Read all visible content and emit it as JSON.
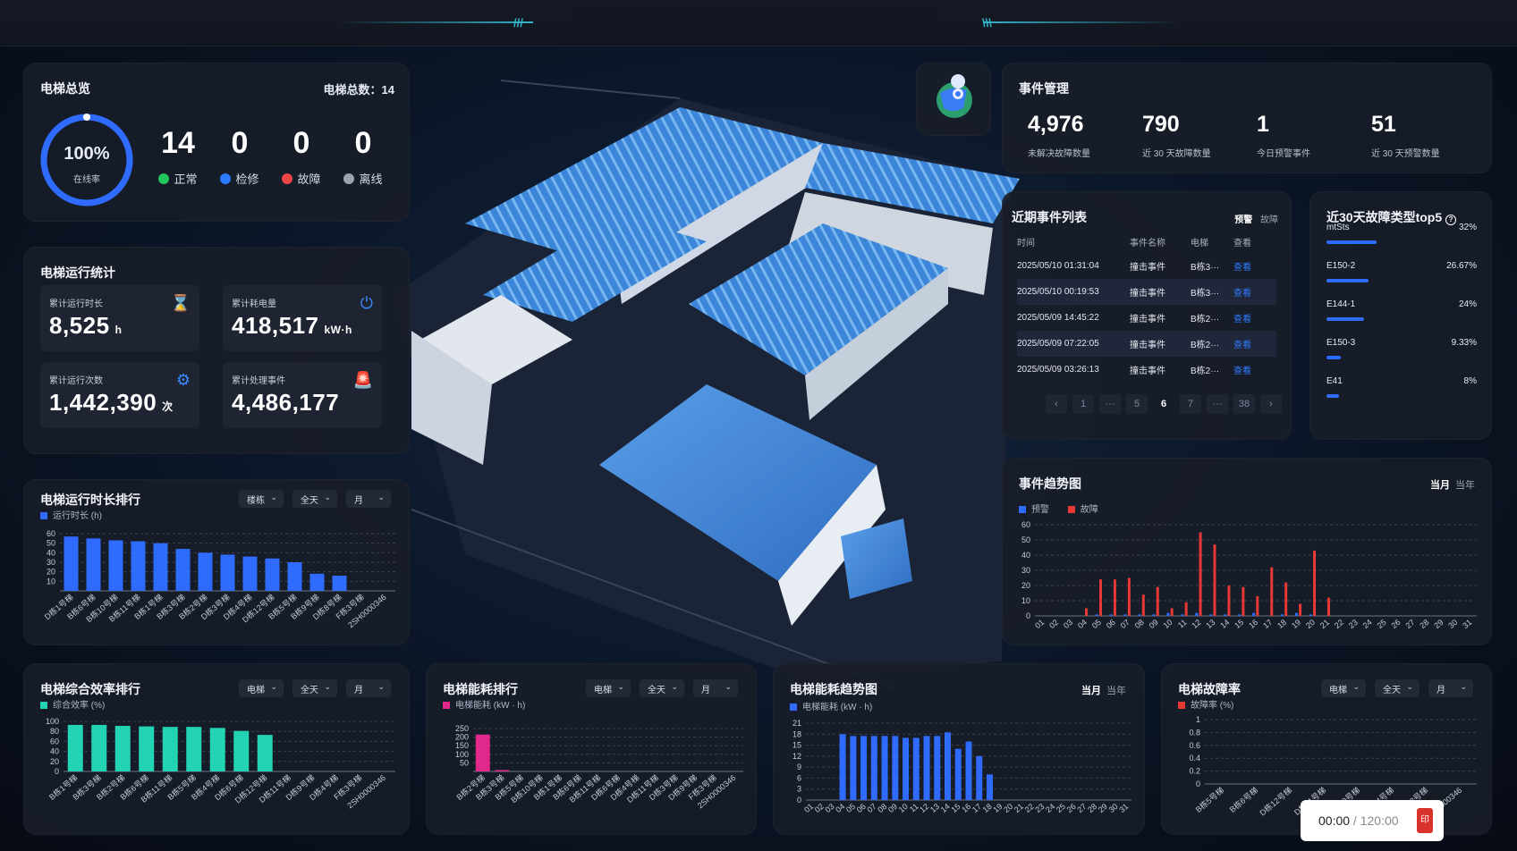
{
  "overview": {
    "title": "电梯总览",
    "total_label": "电梯总数：14",
    "online_rate": "100%",
    "online_label": "在线率",
    "statuses": [
      {
        "value": "14",
        "label": "正常",
        "color": "#22c55e"
      },
      {
        "value": "0",
        "label": "检修",
        "color": "#2f7bff"
      },
      {
        "value": "0",
        "label": "故障",
        "color": "#ef4444"
      },
      {
        "value": "0",
        "label": "离线",
        "color": "#9ca3af"
      }
    ]
  },
  "run_stats": {
    "title": "电梯运行统计",
    "items": [
      {
        "label": "累计运行时长",
        "value": "8,525",
        "unit": "h",
        "icon": "hourglass-icon"
      },
      {
        "label": "累计耗电量",
        "value": "418,517",
        "unit": "kW·h",
        "icon": "power-icon"
      },
      {
        "label": "累计运行次数",
        "value": "1,442,390",
        "unit": "次",
        "icon": "gears-icon"
      },
      {
        "label": "累计处理事件",
        "value": "4,486,177",
        "unit": "",
        "icon": "alarm-icon"
      }
    ]
  },
  "event_mgmt": {
    "title": "事件管理",
    "items": [
      {
        "value": "4,976",
        "label": "未解决故障数量"
      },
      {
        "value": "790",
        "label": "近 30 天故障数量"
      },
      {
        "value": "1",
        "label": "今日预警事件"
      },
      {
        "value": "51",
        "label": "近 30 天预警数量"
      }
    ]
  },
  "recent_events": {
    "title": "近期事件列表",
    "tabs": [
      "预警",
      "故障"
    ],
    "headers": [
      "时间",
      "事件名称",
      "电梯",
      "查看"
    ],
    "rows": [
      [
        "2025/05/10 01:31:04",
        "撞击事件",
        "B栋3···",
        "查看"
      ],
      [
        "2025/05/10 00:19:53",
        "撞击事件",
        "B栋3···",
        "查看"
      ],
      [
        "2025/05/09 14:45:22",
        "撞击事件",
        "B栋2···",
        "查看"
      ],
      [
        "2025/05/09 07:22:05",
        "撞击事件",
        "B栋2···",
        "查看"
      ],
      [
        "2025/05/09 03:26:13",
        "撞击事件",
        "B栋2···",
        "查看"
      ]
    ],
    "pager": [
      "‹",
      "1",
      "···",
      "5",
      "6",
      "7",
      "···",
      "38",
      "›"
    ],
    "current_page": "6"
  },
  "top5": {
    "title": "近30天故障类型top5",
    "items": [
      {
        "name": "mtSts",
        "pct": "32%",
        "value": 32
      },
      {
        "name": "E150-2",
        "pct": "26.67%",
        "value": 26.67
      },
      {
        "name": "E144-1",
        "pct": "24%",
        "value": 24
      },
      {
        "name": "E150-3",
        "pct": "9.33%",
        "value": 9.33
      },
      {
        "name": "E41",
        "pct": "8%",
        "value": 8
      }
    ]
  },
  "filters": {
    "building": "楼栋",
    "elevator": "电梯",
    "all_day": "全天",
    "month": "月"
  },
  "toggles": {
    "current_month": "当月",
    "current_year": "当年"
  },
  "timer": {
    "current": "00:00",
    "separator": " / ",
    "total": "120:00"
  },
  "chart_data": [
    {
      "id": "runtime_rank",
      "type": "bar",
      "title": "电梯运行时长排行",
      "legend": "运行时长 (h)",
      "color": "#2f6bff",
      "ylim": [
        0,
        60
      ],
      "yticks": [
        10,
        20,
        30,
        40,
        50,
        60
      ],
      "categories": [
        "D栋1号梯",
        "B栋6号梯",
        "B栋10号梯",
        "B栋11号梯",
        "B栋1号梯",
        "B栋3号梯",
        "B栋2号梯",
        "D栋3号梯",
        "D栋4号梯",
        "D栋12号梯",
        "B栋5号梯",
        "B栋9号梯",
        "D栋8号梯",
        "F栋3号梯",
        "2SH0000346"
      ],
      "values": [
        57,
        55,
        53,
        52,
        50,
        44,
        40,
        38,
        36,
        34,
        30,
        18,
        16,
        0,
        0
      ]
    },
    {
      "id": "efficiency_rank",
      "type": "bar",
      "title": "电梯综合效率排行",
      "legend": "综合效率 (%)",
      "color": "#22d3b4",
      "ylim": [
        0,
        100
      ],
      "yticks": [
        0,
        20,
        40,
        60,
        80,
        100
      ],
      "categories": [
        "B栋1号梯",
        "B栋3号梯",
        "B栋2号梯",
        "B栋6号梯",
        "B栋11号梯",
        "B栋5号梯",
        "B栋4号梯",
        "D栋6号梯",
        "D栋12号梯",
        "D栋11号梯",
        "D栋9号梯",
        "D栋4号梯",
        "F栋3号梯",
        "2SH0000346"
      ],
      "values": [
        93,
        93,
        91,
        90,
        89,
        89,
        87,
        81,
        73,
        0,
        0,
        0,
        0,
        0
      ]
    },
    {
      "id": "energy_rank",
      "type": "bar",
      "title": "电梯能耗排行",
      "legend": "电梯能耗 (kW · h)",
      "color": "#e0298a",
      "ylim": [
        0,
        250
      ],
      "yticks": [
        50,
        100,
        150,
        200,
        250
      ],
      "categories": [
        "B栋2号梯",
        "B栋3号梯",
        "B栋5号梯",
        "B栋10号梯",
        "B栋1号梯",
        "B栋6号梯",
        "B栋11号梯",
        "D栋6号梯",
        "D栋4号梯",
        "D栋11号梯",
        "D栋3号梯",
        "D栋9号梯",
        "F栋3号梯",
        "2SH0000346"
      ],
      "values": [
        215,
        8,
        0,
        0,
        0,
        0,
        0,
        0,
        0,
        0,
        0,
        0,
        0,
        0
      ]
    },
    {
      "id": "energy_trend",
      "type": "bar",
      "title": "电梯能耗趋势图",
      "legend": "电梯能耗 (kW · h)",
      "color": "#2f6bff",
      "ylim": [
        0,
        21
      ],
      "yticks": [
        0,
        3,
        6,
        9,
        12,
        15,
        18,
        21
      ],
      "categories": [
        "01",
        "02",
        "03",
        "04",
        "05",
        "06",
        "07",
        "08",
        "09",
        "10",
        "11",
        "12",
        "13",
        "14",
        "15",
        "16",
        "17",
        "18",
        "19",
        "20",
        "21",
        "22",
        "23",
        "24",
        "25",
        "26",
        "27",
        "28",
        "29",
        "30",
        "31"
      ],
      "values": [
        0,
        0,
        0,
        18,
        17.5,
        17.5,
        17.5,
        17.5,
        17.5,
        17,
        17,
        17.5,
        17.5,
        18.5,
        14,
        16,
        12,
        7,
        0,
        0,
        0,
        0,
        0,
        0,
        0,
        0,
        0,
        0,
        0,
        0,
        0
      ]
    },
    {
      "id": "fault_rate",
      "type": "bar",
      "title": "电梯故障率",
      "legend": "故障率 (%)",
      "color": "#e53935",
      "ylim": [
        0,
        1
      ],
      "yticks": [
        0,
        0.2,
        0.4,
        0.6,
        0.8,
        1
      ],
      "categories": [
        "B栋5号梯",
        "B栋6号梯",
        "D栋12号梯",
        "D栋11号梯",
        "D栋9号梯",
        "D栋4号梯",
        "F栋3号梯",
        "2SH0000346"
      ],
      "values": [
        0,
        0,
        0,
        0,
        0,
        0,
        0,
        0
      ]
    },
    {
      "id": "event_trend",
      "type": "bar",
      "title": "事件趋势图",
      "ylim": [
        0,
        60
      ],
      "yticks": [
        0,
        10,
        20,
        30,
        40,
        50,
        60
      ],
      "categories": [
        "01",
        "02",
        "03",
        "04",
        "05",
        "06",
        "07",
        "08",
        "09",
        "10",
        "11",
        "12",
        "13",
        "14",
        "15",
        "16",
        "17",
        "18",
        "19",
        "20",
        "21",
        "22",
        "23",
        "24",
        "25",
        "26",
        "27",
        "28",
        "29",
        "30",
        "31"
      ],
      "series": [
        {
          "name": "预警",
          "color": "#2f6bff",
          "values": [
            0,
            0,
            0,
            0,
            1,
            1,
            1,
            1,
            1,
            2,
            1,
            2,
            1,
            1,
            1,
            2,
            0,
            1,
            2,
            1,
            0,
            0,
            0,
            0,
            0,
            0,
            0,
            0,
            0,
            0,
            0
          ]
        },
        {
          "name": "故障",
          "color": "#e53935",
          "values": [
            0,
            0,
            0,
            5,
            24,
            24,
            25,
            14,
            19,
            5,
            9,
            55,
            47,
            20,
            19,
            13,
            32,
            22,
            8,
            43,
            12,
            0,
            0,
            0,
            0,
            0,
            0,
            0,
            0,
            0,
            0
          ]
        }
      ]
    }
  ]
}
